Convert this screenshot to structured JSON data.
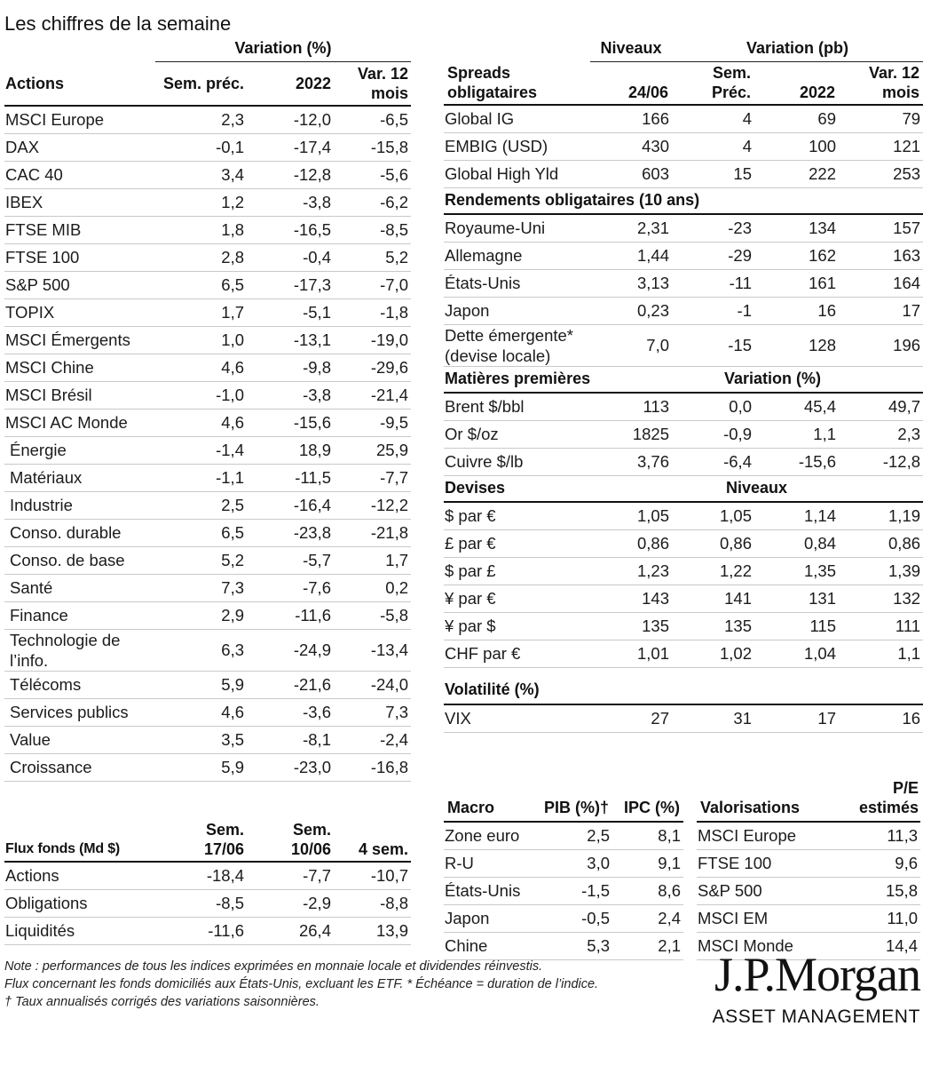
{
  "title": "Les chiffres de la semaine",
  "equities": {
    "group_header": "Variation (%)",
    "columns": [
      "Actions",
      "Sem. préc.",
      "2022",
      "Var. 12 mois"
    ],
    "rows": [
      {
        "label": "MSCI Europe",
        "values": [
          "2,3",
          "-12,0",
          "-6,5"
        ]
      },
      {
        "label": "DAX",
        "values": [
          "-0,1",
          "-17,4",
          "-15,8"
        ]
      },
      {
        "label": "CAC 40",
        "values": [
          "3,4",
          "-12,8",
          "-5,6"
        ]
      },
      {
        "label": "IBEX",
        "values": [
          "1,2",
          "-3,8",
          "-6,2"
        ]
      },
      {
        "label": "FTSE MIB",
        "values": [
          "1,8",
          "-16,5",
          "-8,5"
        ]
      },
      {
        "label": "FTSE 100",
        "values": [
          "2,8",
          "-0,4",
          "5,2"
        ]
      },
      {
        "label": "S&P 500",
        "values": [
          "6,5",
          "-17,3",
          "-7,0"
        ]
      },
      {
        "label": "TOPIX",
        "values": [
          "1,7",
          "-5,1",
          "-1,8"
        ]
      },
      {
        "label": "MSCI Émergents",
        "values": [
          "1,0",
          "-13,1",
          "-19,0"
        ]
      },
      {
        "label": "MSCI Chine",
        "values": [
          "4,6",
          "-9,8",
          "-29,6"
        ]
      },
      {
        "label": "MSCI Brésil",
        "values": [
          "-1,0",
          "-3,8",
          "-21,4"
        ]
      },
      {
        "label": "MSCI AC Monde",
        "values": [
          "4,6",
          "-15,6",
          "-9,5"
        ]
      },
      {
        "label": "Énergie",
        "values": [
          "-1,4",
          "18,9",
          "25,9"
        ]
      },
      {
        "label": "Matériaux",
        "values": [
          "-1,1",
          "-11,5",
          "-7,7"
        ]
      },
      {
        "label": "Industrie",
        "values": [
          "2,5",
          "-16,4",
          "-12,2"
        ]
      },
      {
        "label": "Conso. durable",
        "values": [
          "6,5",
          "-23,8",
          "-21,8"
        ]
      },
      {
        "label": "Conso. de base",
        "values": [
          "5,2",
          "-5,7",
          "1,7"
        ]
      },
      {
        "label": "Santé",
        "values": [
          "7,3",
          "-7,6",
          "0,2"
        ]
      },
      {
        "label": "Finance",
        "values": [
          "2,9",
          "-11,6",
          "-5,8"
        ]
      },
      {
        "label": "Technologie de l’info.",
        "values": [
          "6,3",
          "-24,9",
          "-13,4"
        ]
      },
      {
        "label": "Télécoms",
        "values": [
          "5,9",
          "-21,6",
          "-24,0"
        ]
      },
      {
        "label": "Services publics",
        "values": [
          "4,6",
          "-3,6",
          "7,3"
        ]
      },
      {
        "label": "Value",
        "values": [
          "3,5",
          "-8,1",
          "-2,4"
        ]
      },
      {
        "label": "Croissance",
        "values": [
          "5,9",
          "-23,0",
          "-16,8"
        ]
      }
    ]
  },
  "bonds": {
    "group_levels": "Niveaux",
    "group_change": "Variation (pb)",
    "columns": [
      "Spreads obligataires",
      "24/06",
      "Sem. Préc.",
      "2022",
      "Var. 12 mois"
    ],
    "sections": [
      {
        "rows": [
          {
            "label": "Global IG",
            "values": [
              "166",
              "4",
              "69",
              "79"
            ]
          },
          {
            "label": "EMBIG (USD)",
            "values": [
              "430",
              "4",
              "100",
              "121"
            ]
          },
          {
            "label": "Global High Yld",
            "values": [
              "603",
              "15",
              "222",
              "253"
            ]
          }
        ]
      },
      {
        "title": "Rendements obligataires (10 ans)",
        "rows": [
          {
            "label": "Royaume-Uni",
            "values": [
              "2,31",
              "-23",
              "134",
              "157"
            ]
          },
          {
            "label": "Allemagne",
            "values": [
              "1,44",
              "-29",
              "162",
              "163"
            ]
          },
          {
            "label": "États-Unis",
            "values": [
              "3,13",
              "-11",
              "161",
              "164"
            ]
          },
          {
            "label": "Japon",
            "values": [
              "0,23",
              "-1",
              "16",
              "17"
            ]
          },
          {
            "label": "Dette émergente* (devise locale)",
            "values": [
              "7,0",
              "-15",
              "128",
              "196"
            ]
          }
        ]
      },
      {
        "title": "Matières premières",
        "subtitle": "Variation (%)",
        "rows": [
          {
            "label": "Brent $/bbl",
            "values": [
              "113",
              "0,0",
              "45,4",
              "49,7"
            ]
          },
          {
            "label": "Or $/oz",
            "values": [
              "1825",
              "-0,9",
              "1,1",
              "2,3"
            ]
          },
          {
            "label": "Cuivre $/lb",
            "values": [
              "3,76",
              "-6,4",
              "-15,6",
              "-12,8"
            ]
          }
        ]
      },
      {
        "title": "Devises",
        "subtitle": "Niveaux",
        "rows": [
          {
            "label": "$ par €",
            "values": [
              "1,05",
              "1,05",
              "1,14",
              "1,19"
            ]
          },
          {
            "label": "£ par €",
            "values": [
              "0,86",
              "0,86",
              "0,84",
              "0,86"
            ]
          },
          {
            "label": "$ par £",
            "values": [
              "1,23",
              "1,22",
              "1,35",
              "1,39"
            ]
          },
          {
            "label": "¥ par €",
            "values": [
              "143",
              "141",
              "131",
              "132"
            ]
          },
          {
            "label": "¥ par $",
            "values": [
              "135",
              "135",
              "115",
              "111"
            ]
          },
          {
            "label": "CHF par €",
            "values": [
              "1,01",
              "1,02",
              "1,04",
              "1,1"
            ]
          }
        ]
      },
      {
        "title": "Volatilité (%)",
        "rows": [
          {
            "label": "VIX",
            "values": [
              "27",
              "31",
              "17",
              "16"
            ]
          }
        ]
      }
    ]
  },
  "fund_flows": {
    "columns": [
      "Flux fonds (Md $)",
      "Sem. 17/06",
      "Sem. 10/06",
      "4 sem."
    ],
    "rows": [
      {
        "label": "Actions",
        "values": [
          "-18,4",
          "-7,7",
          "-10,7"
        ]
      },
      {
        "label": "Obligations",
        "values": [
          "-8,5",
          "-2,9",
          "-8,8"
        ]
      },
      {
        "label": "Liquidités",
        "values": [
          "-11,6",
          "26,4",
          "13,9"
        ]
      }
    ]
  },
  "macro": {
    "columns": [
      "Macro",
      "PIB (%)†",
      "IPC (%)"
    ],
    "rows": [
      {
        "label": "Zone euro",
        "values": [
          "2,5",
          "8,1"
        ]
      },
      {
        "label": "R-U",
        "values": [
          "3,0",
          "9,1"
        ]
      },
      {
        "label": "États-Unis",
        "values": [
          "-1,5",
          "8,6"
        ]
      },
      {
        "label": "Japon",
        "values": [
          "-0,5",
          "2,4"
        ]
      },
      {
        "label": "Chine",
        "values": [
          "5,3",
          "2,1"
        ]
      }
    ]
  },
  "valuations": {
    "columns": [
      "Valorisations",
      "P/E estimés"
    ],
    "rows": [
      {
        "label": "MSCI Europe",
        "values": [
          "11,3"
        ]
      },
      {
        "label": "FTSE 100",
        "values": [
          "9,6"
        ]
      },
      {
        "label": "S&P 500",
        "values": [
          "15,8"
        ]
      },
      {
        "label": "MSCI EM",
        "values": [
          "11,0"
        ]
      },
      {
        "label": "MSCI Monde",
        "values": [
          "14,4"
        ]
      }
    ]
  },
  "notes": [
    "Note : performances de tous les indices exprimées en monnaie locale et dividendes réinvestis.",
    "Flux concernant les fonds domiciliés aux États-Unis, excluant les ETF. * Échéance = duration de l’indice.",
    "† Taux annualisés corrigés des variations saisonnières."
  ],
  "logo": {
    "brand": "J.P.Morgan",
    "subtitle": "ASSET MANAGEMENT"
  }
}
